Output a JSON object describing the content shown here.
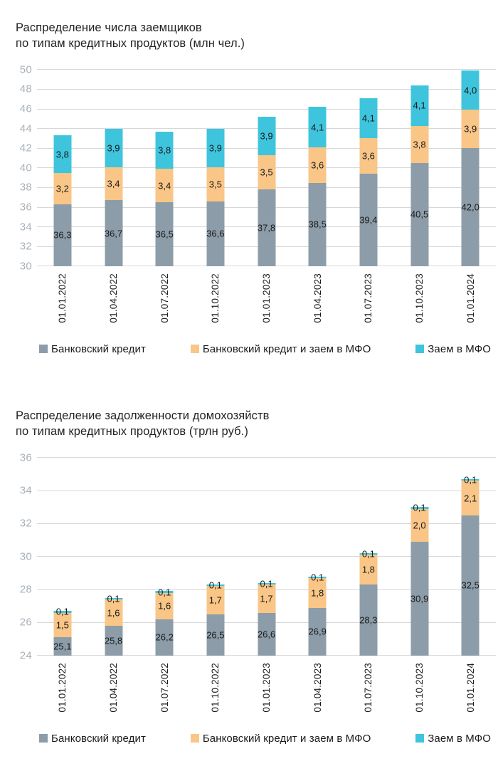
{
  "page": {
    "background": "#FFFFFF"
  },
  "colors": {
    "bank_credit": "#8C9DA9",
    "bank_credit_and_mfo": "#F9C687",
    "mfo_loan": "#3EC5DD",
    "gridline": "#D8D8D8",
    "axis_tick_text": "#A9B1B8",
    "dark_text": "#1D1D1F"
  },
  "chart_data": [
    {
      "type": "bar",
      "stacked": true,
      "title": "Распределение числа заемщиков по типам кредитных продуктов (млн чел.)",
      "title_lines": [
        "Распределение числа заемщиков",
        "по типам кредитных продуктов (млн чел.)"
      ],
      "unit": "млн чел.",
      "categories": [
        "01.01.2022",
        "01.04.2022",
        "01.07.2022",
        "01.10.2022",
        "01.01.2023",
        "01.04.2023",
        "01.07.2023",
        "01.10.2023",
        "01.01.2024"
      ],
      "series": [
        {
          "name": "Банковский кредит",
          "color": "#8C9DA9",
          "values": [
            36.3,
            36.7,
            36.5,
            36.6,
            37.8,
            38.5,
            39.4,
            40.5,
            42.0
          ]
        },
        {
          "name": "Банковский кредит и заем в МФО",
          "color": "#F9C687",
          "values": [
            3.2,
            3.4,
            3.4,
            3.5,
            3.5,
            3.6,
            3.6,
            3.8,
            3.9
          ]
        },
        {
          "name": "Заем в МФО",
          "color": "#3EC5DD",
          "values": [
            3.8,
            3.9,
            3.8,
            3.9,
            3.9,
            4.1,
            4.1,
            4.1,
            4.0
          ]
        }
      ],
      "ylim": [
        30,
        50
      ],
      "ytick_step": 2,
      "yticks": [
        30,
        32,
        34,
        36,
        38,
        40,
        42,
        44,
        46,
        48,
        50
      ],
      "grid": true,
      "legend_position": "bottom",
      "value_label_decimal": "comma"
    },
    {
      "type": "bar",
      "stacked": true,
      "title": "Распределение задолженности домохозяйств по типам кредитных продуктов (трлн руб.)",
      "title_lines": [
        "Распределение задолженности домохозяйств",
        "по типам кредитных продуктов (трлн руб.)"
      ],
      "unit": "трлн руб.",
      "categories": [
        "01.01.2022",
        "01.04.2022",
        "01.07.2022",
        "01.10.2022",
        "01.01.2023",
        "01.04.2023",
        "01.07.2023",
        "01.10.2023",
        "01.01.2024"
      ],
      "series": [
        {
          "name": "Банковский кредит",
          "color": "#8C9DA9",
          "values": [
            25.1,
            25.8,
            26.2,
            26.5,
            26.6,
            26.9,
            28.3,
            30.9,
            32.5
          ]
        },
        {
          "name": "Банковский кредит и заем в МФО",
          "color": "#F9C687",
          "values": [
            1.5,
            1.6,
            1.6,
            1.7,
            1.7,
            1.8,
            1.8,
            2.0,
            2.1
          ]
        },
        {
          "name": "Заем в МФО",
          "color": "#3EC5DD",
          "values": [
            0.1,
            0.1,
            0.1,
            0.1,
            0.1,
            0.1,
            0.1,
            0.1,
            0.1
          ]
        }
      ],
      "ylim": [
        24,
        36
      ],
      "ytick_step": 2,
      "yticks": [
        24,
        26,
        28,
        30,
        32,
        34,
        36
      ],
      "grid": true,
      "legend_position": "bottom",
      "value_label_decimal": "comma"
    }
  ]
}
